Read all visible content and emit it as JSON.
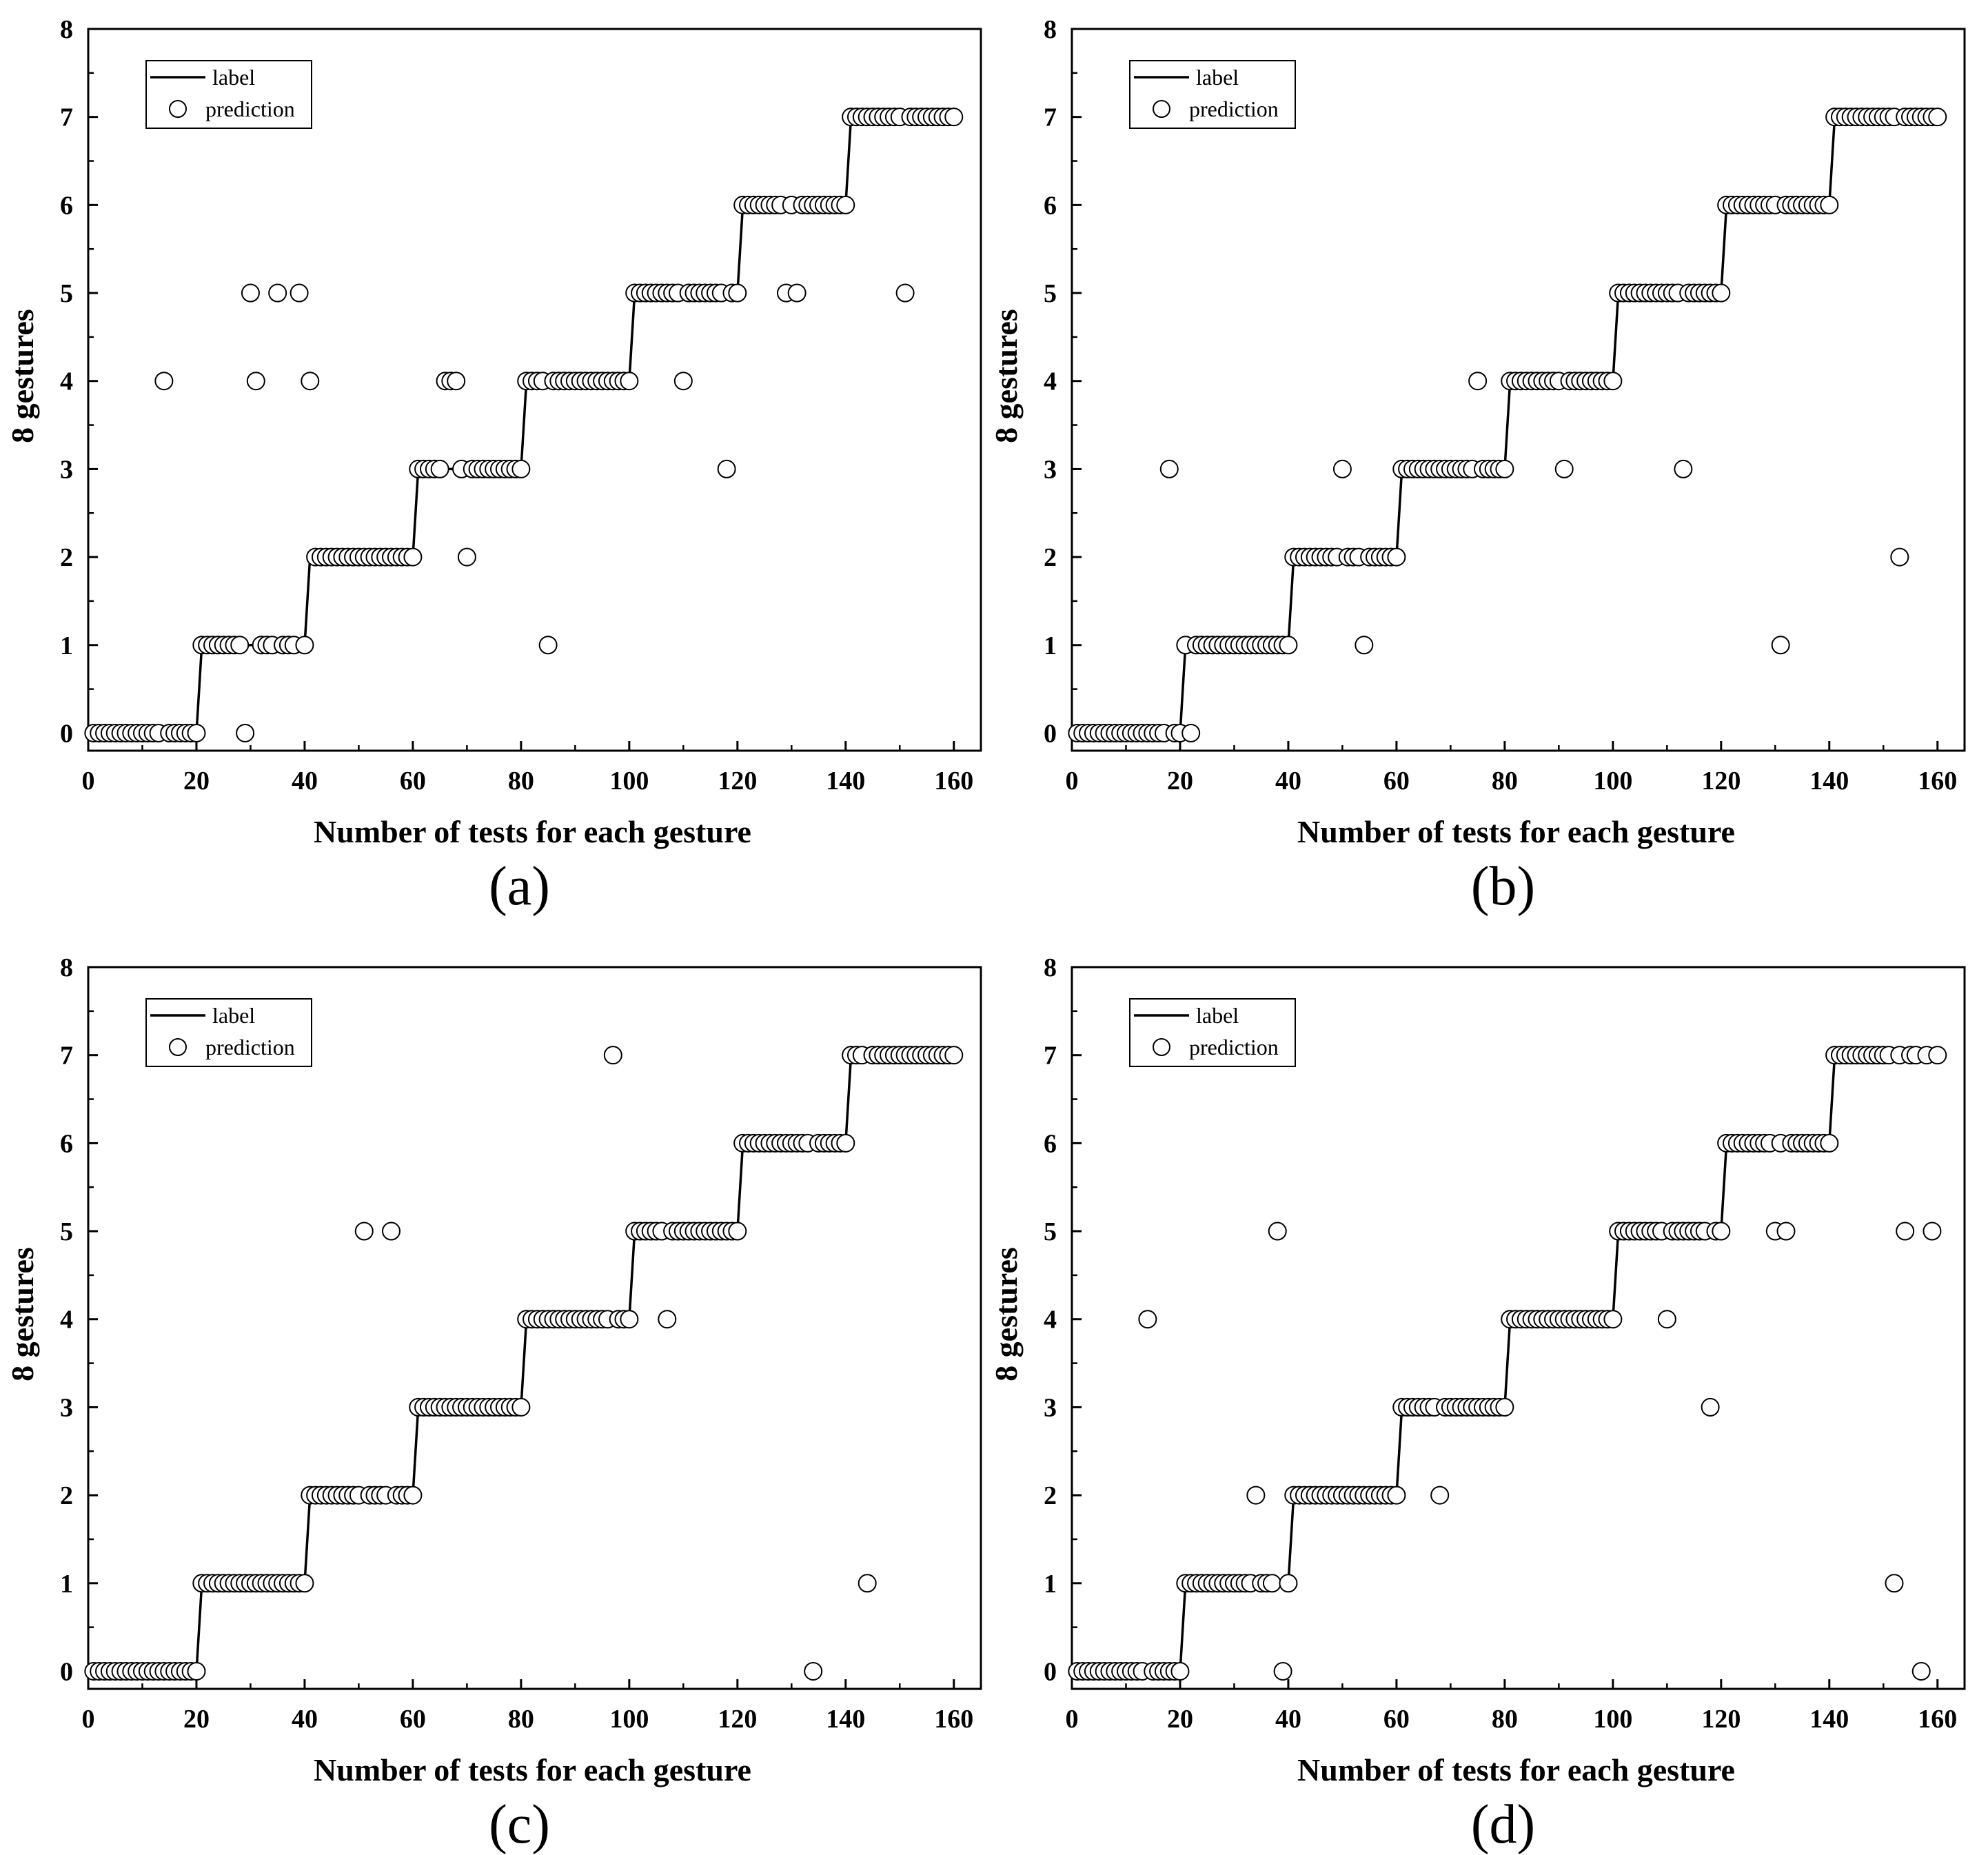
{
  "chart_data": [
    {
      "type": "scatter",
      "panel_label": "(a)",
      "xlabel": "Number of tests for each gesture",
      "ylabel": "8 gestures",
      "xticks": [
        0,
        20,
        40,
        60,
        80,
        100,
        120,
        140,
        160
      ],
      "yticks": [
        0,
        1,
        2,
        3,
        4,
        5,
        6,
        7,
        8
      ],
      "xlim": [
        0,
        165
      ],
      "ylim": [
        -0.2,
        8
      ],
      "legend": {
        "position": "top-left",
        "entries": [
          "label",
          "prediction"
        ]
      },
      "series": [
        {
          "name": "label",
          "style": "line",
          "description": "step function: gesture class k for tests 20k+1 to 20k+20",
          "steps": [
            [
              1,
              20,
              0
            ],
            [
              21,
              40,
              1
            ],
            [
              41,
              60,
              2
            ],
            [
              61,
              80,
              3
            ],
            [
              81,
              100,
              4
            ],
            [
              101,
              120,
              5
            ],
            [
              121,
              140,
              6
            ],
            [
              141,
              160,
              7
            ]
          ]
        },
        {
          "name": "prediction",
          "style": "open-circle",
          "misclassified": [
            [
              14,
              4
            ],
            [
              29,
              0
            ],
            [
              30,
              5
            ],
            [
              31,
              4
            ],
            [
              35,
              5
            ],
            [
              39,
              5
            ],
            [
              41,
              4
            ],
            [
              66,
              4
            ],
            [
              67,
              4
            ],
            [
              68,
              4
            ],
            [
              70,
              2
            ],
            [
              85,
              1
            ],
            [
              110,
              4
            ],
            [
              118,
              3
            ],
            [
              129,
              5
            ],
            [
              131,
              5
            ],
            [
              151,
              5
            ]
          ]
        }
      ]
    },
    {
      "type": "scatter",
      "panel_label": "(b)",
      "xlabel": "Number of tests for each gesture",
      "ylabel": "8 gestures",
      "xticks": [
        0,
        20,
        40,
        60,
        80,
        100,
        120,
        140,
        160
      ],
      "yticks": [
        0,
        1,
        2,
        3,
        4,
        5,
        6,
        7,
        8
      ],
      "xlim": [
        0,
        165
      ],
      "ylim": [
        -0.2,
        8
      ],
      "legend": {
        "position": "top-left",
        "entries": [
          "label",
          "prediction"
        ]
      },
      "series": [
        {
          "name": "label",
          "style": "line",
          "description": "step function: gesture class k for tests 20k+1 to 20k+20",
          "steps": [
            [
              1,
              20,
              0
            ],
            [
              21,
              40,
              1
            ],
            [
              41,
              60,
              2
            ],
            [
              61,
              80,
              3
            ],
            [
              81,
              100,
              4
            ],
            [
              101,
              120,
              5
            ],
            [
              121,
              140,
              6
            ],
            [
              141,
              160,
              7
            ]
          ]
        },
        {
          "name": "prediction",
          "style": "open-circle",
          "misclassified": [
            [
              18,
              3
            ],
            [
              22,
              0
            ],
            [
              50,
              3
            ],
            [
              54,
              1
            ],
            [
              75,
              4
            ],
            [
              91,
              3
            ],
            [
              113,
              3
            ],
            [
              131,
              1
            ],
            [
              153,
              2
            ]
          ]
        }
      ]
    },
    {
      "type": "scatter",
      "panel_label": "(c)",
      "xlabel": "Number of tests for each gesture",
      "ylabel": "8 gestures",
      "xticks": [
        0,
        20,
        40,
        60,
        80,
        100,
        120,
        140,
        160
      ],
      "yticks": [
        0,
        1,
        2,
        3,
        4,
        5,
        6,
        7,
        8
      ],
      "xlim": [
        0,
        165
      ],
      "ylim": [
        -0.2,
        8
      ],
      "legend": {
        "position": "top-left",
        "entries": [
          "label",
          "prediction"
        ]
      },
      "series": [
        {
          "name": "label",
          "style": "line",
          "description": "step function: gesture class k for tests 20k+1 to 20k+20",
          "steps": [
            [
              1,
              20,
              0
            ],
            [
              21,
              40,
              1
            ],
            [
              41,
              60,
              2
            ],
            [
              61,
              80,
              3
            ],
            [
              81,
              100,
              4
            ],
            [
              101,
              120,
              5
            ],
            [
              121,
              140,
              6
            ],
            [
              141,
              160,
              7
            ]
          ]
        },
        {
          "name": "prediction",
          "style": "open-circle",
          "misclassified": [
            [
              51,
              5
            ],
            [
              56,
              5
            ],
            [
              97,
              7
            ],
            [
              107,
              4
            ],
            [
              134,
              0
            ],
            [
              144,
              1
            ]
          ]
        }
      ]
    },
    {
      "type": "scatter",
      "panel_label": "(d)",
      "xlabel": "Number of tests for each gesture",
      "ylabel": "8 gestures",
      "xticks": [
        0,
        20,
        40,
        60,
        80,
        100,
        120,
        140,
        160
      ],
      "yticks": [
        0,
        1,
        2,
        3,
        4,
        5,
        6,
        7,
        8
      ],
      "xlim": [
        0,
        165
      ],
      "ylim": [
        -0.2,
        8
      ],
      "legend": {
        "position": "top-left",
        "entries": [
          "label",
          "prediction"
        ]
      },
      "series": [
        {
          "name": "label",
          "style": "line",
          "description": "step function: gesture class k for tests 20k+1 to 20k+20",
          "steps": [
            [
              1,
              20,
              0
            ],
            [
              21,
              40,
              1
            ],
            [
              41,
              60,
              2
            ],
            [
              61,
              80,
              3
            ],
            [
              81,
              100,
              4
            ],
            [
              101,
              120,
              5
            ],
            [
              121,
              140,
              6
            ],
            [
              141,
              160,
              7
            ]
          ]
        },
        {
          "name": "prediction",
          "style": "open-circle",
          "misclassified": [
            [
              14,
              4
            ],
            [
              34,
              2
            ],
            [
              38,
              5
            ],
            [
              39,
              0
            ],
            [
              68,
              2
            ],
            [
              110,
              4
            ],
            [
              118,
              3
            ],
            [
              130,
              5
            ],
            [
              132,
              5
            ],
            [
              152,
              1
            ],
            [
              154,
              5
            ],
            [
              157,
              0
            ],
            [
              159,
              5
            ]
          ]
        }
      ]
    }
  ]
}
